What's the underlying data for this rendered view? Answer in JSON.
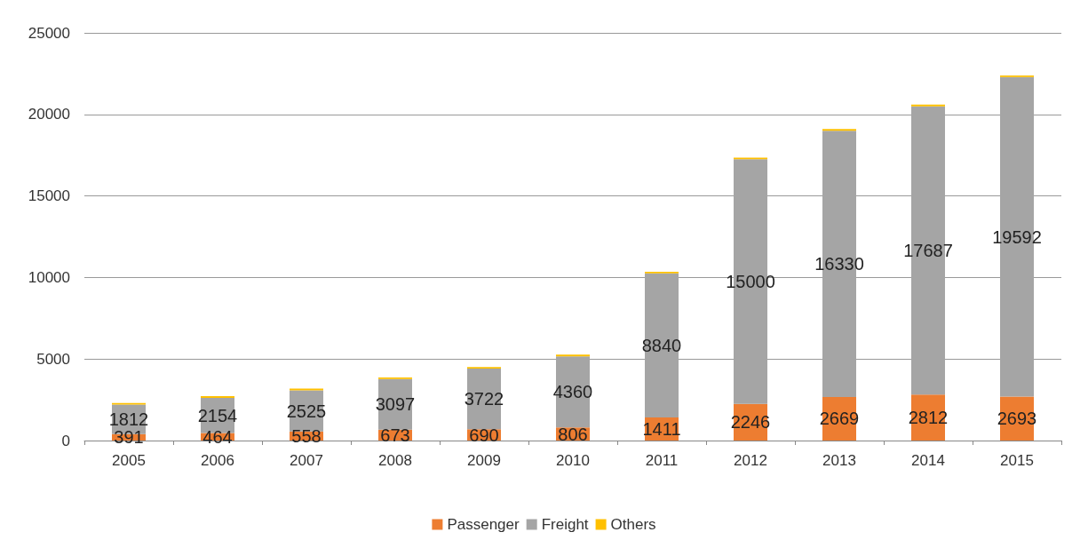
{
  "chart_data": {
    "type": "bar",
    "stacked": true,
    "categories": [
      "2005",
      "2006",
      "2007",
      "2008",
      "2009",
      "2010",
      "2011",
      "2012",
      "2013",
      "2014",
      "2015"
    ],
    "series": [
      {
        "name": "Passenger",
        "color": "#ed7d31",
        "values": [
          391,
          464,
          558,
          673,
          690,
          806,
          1411,
          2246,
          2669,
          2812,
          2693
        ],
        "value_labels": [
          "391",
          "464",
          "558",
          "673",
          "690",
          "806",
          "1411",
          "2246",
          "2669",
          "2812",
          "2693"
        ]
      },
      {
        "name": "Freight",
        "color": "#a5a5a5",
        "values": [
          1812,
          2154,
          2525,
          3097,
          3722,
          4360,
          8840,
          15000,
          16330,
          17687,
          19592
        ],
        "value_labels": [
          "1812",
          "2154",
          "2525",
          "3097",
          "3722",
          "4360",
          "8840",
          "15000",
          "16330",
          "17687",
          "19592"
        ]
      },
      {
        "name": "Others",
        "color": "#ffc000",
        "values": [
          100,
          100,
          100,
          100,
          100,
          100,
          100,
          100,
          100,
          100,
          100
        ]
      }
    ],
    "ylim": [
      0,
      25000
    ],
    "yticks": [
      0,
      5000,
      10000,
      15000,
      20000,
      25000
    ],
    "grid": "y",
    "legend": "bottom"
  }
}
